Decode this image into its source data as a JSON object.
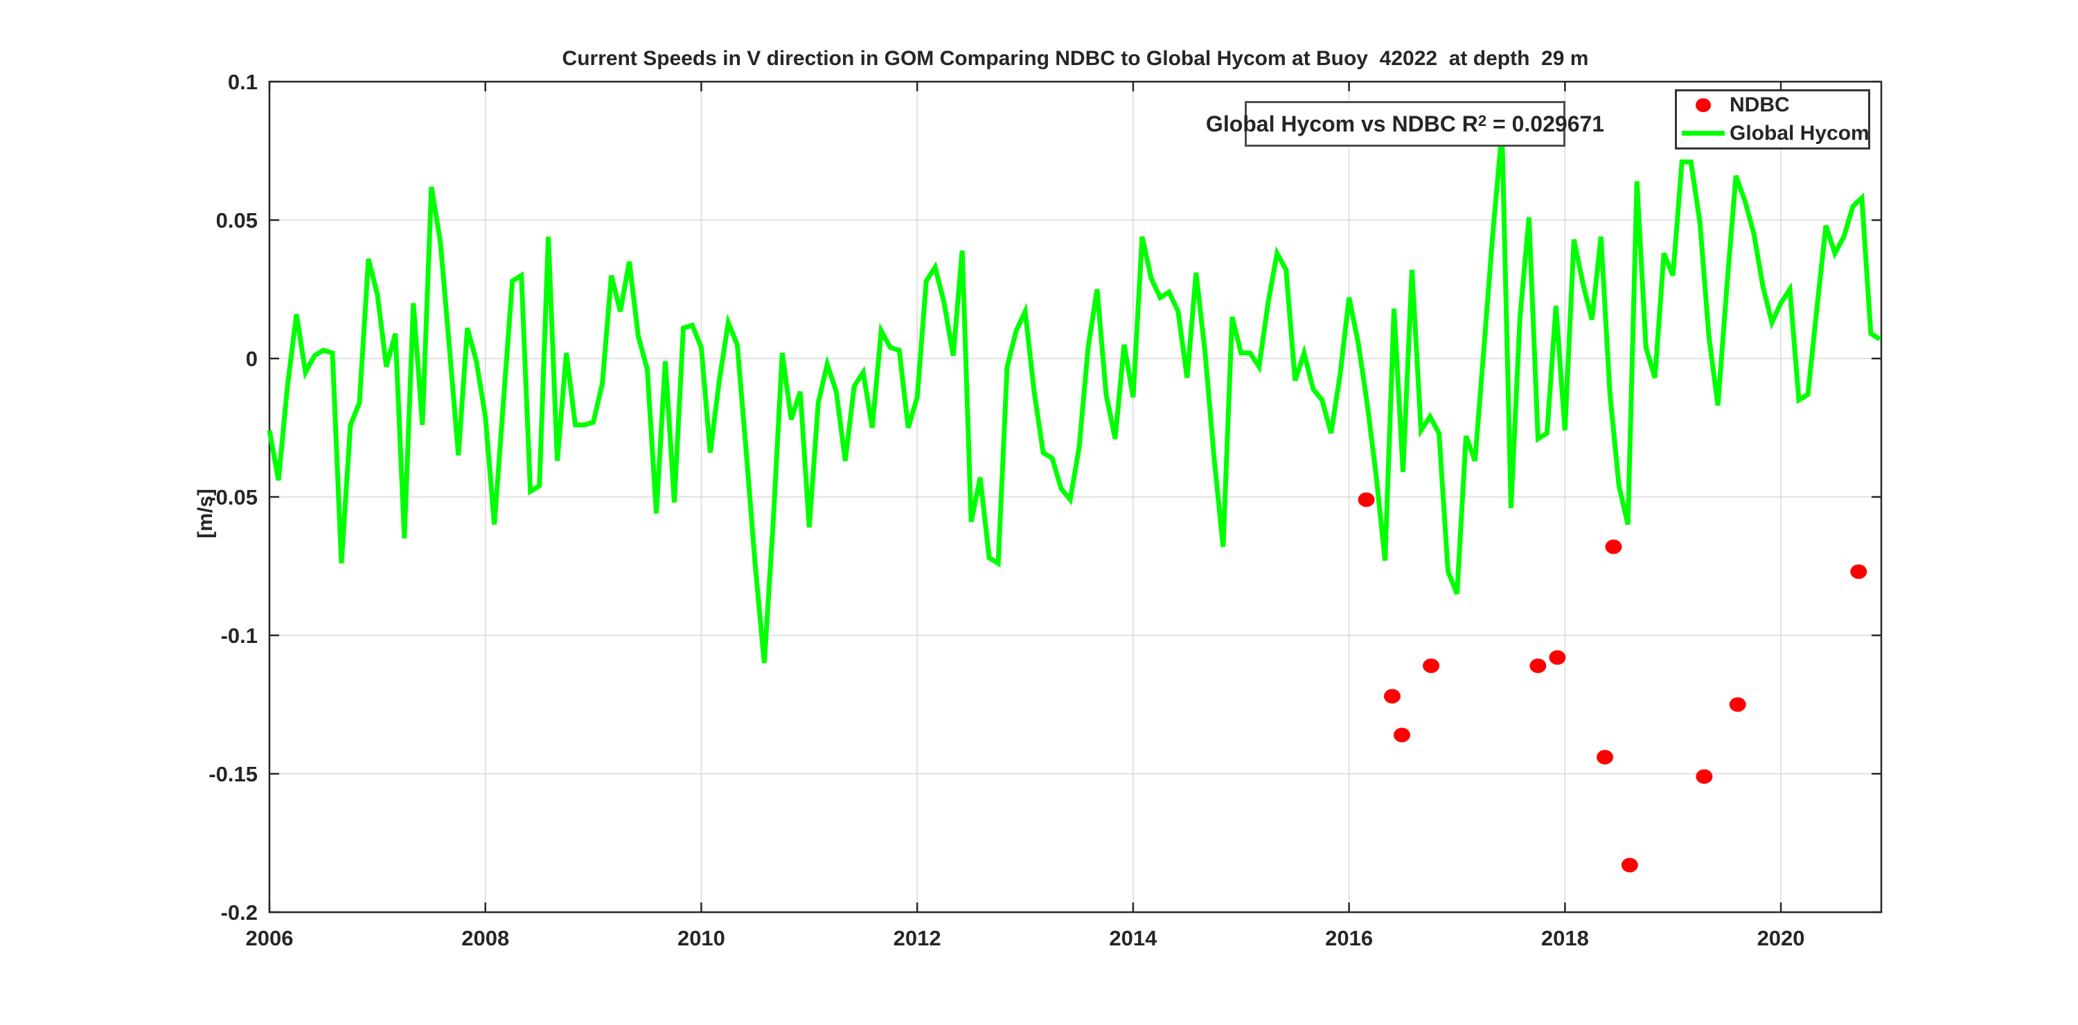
{
  "title": "Current Speeds in V direction in GOM Comparing NDBC to Global Hycom at Buoy  42022  at depth  29 m",
  "annotation": {
    "prefix": "Global Hycom vs NDBC R",
    "sup": "2",
    "suffix": " = 0.029671"
  },
  "legend": {
    "items": [
      {
        "label": "NDBC",
        "marker": "red-dot-icon",
        "color": "#ff0000"
      },
      {
        "label": "Global Hycom",
        "marker": "green-line-icon",
        "color": "#00ff00"
      }
    ]
  },
  "axes": {
    "ylabel": "[m/s]"
  },
  "chart_data": {
    "type": "line",
    "title": "Current Speeds in V direction in GOM Comparing NDBC to Global Hycom at Buoy  42022  at depth  29 m",
    "xlabel": "",
    "ylabel": "[m/s]",
    "xlim": [
      2006,
      2020.93
    ],
    "ylim": [
      -0.2,
      0.1
    ],
    "grid": true,
    "legend_position": "top-right",
    "annotation": "Global Hycom vs NDBC R^2 = 0.029671",
    "x_ticks": [
      {
        "value": 2006,
        "label": "2006"
      },
      {
        "value": 2008,
        "label": "2008"
      },
      {
        "value": 2010,
        "label": "2010"
      },
      {
        "value": 2012,
        "label": "2012"
      },
      {
        "value": 2014,
        "label": "2014"
      },
      {
        "value": 2016,
        "label": "2016"
      },
      {
        "value": 2018,
        "label": "2018"
      },
      {
        "value": 2020,
        "label": "2020"
      }
    ],
    "y_ticks": [
      {
        "value": 0.1,
        "label": "0.1"
      },
      {
        "value": 0.05,
        "label": "0.05"
      },
      {
        "value": 0,
        "label": "0"
      },
      {
        "value": -0.05,
        "label": "-0.05"
      },
      {
        "value": -0.1,
        "label": "-0.1"
      },
      {
        "value": -0.15,
        "label": "-0.15"
      },
      {
        "value": -0.2,
        "label": "-0.2"
      }
    ],
    "series": [
      {
        "name": "NDBC",
        "type": "scatter",
        "color": "#ff0000",
        "points": [
          [
            2016.16,
            -0.051
          ],
          [
            2016.4,
            -0.122
          ],
          [
            2016.49,
            -0.136
          ],
          [
            2016.76,
            -0.111
          ],
          [
            2017.75,
            -0.111
          ],
          [
            2017.93,
            -0.108
          ],
          [
            2018.37,
            -0.144
          ],
          [
            2018.45,
            -0.068
          ],
          [
            2018.6,
            -0.183
          ],
          [
            2019.29,
            -0.151
          ],
          [
            2019.6,
            -0.125
          ],
          [
            2020.72,
            -0.077
          ]
        ]
      },
      {
        "name": "Global Hycom",
        "type": "line",
        "color": "#00ff00",
        "x_start": 2006.0,
        "x_step_months": 1,
        "values": [
          -0.026,
          -0.044,
          -0.01,
          0.016,
          -0.005,
          0.001,
          0.003,
          0.002,
          -0.074,
          -0.024,
          -0.016,
          0.036,
          0.023,
          -0.003,
          0.009,
          -0.065,
          0.02,
          -0.024,
          0.062,
          0.042,
          0.004,
          -0.035,
          0.011,
          -0.001,
          -0.021,
          -0.06,
          -0.016,
          0.028,
          0.03,
          -0.048,
          -0.046,
          0.044,
          -0.037,
          0.002,
          -0.024,
          -0.024,
          -0.023,
          -0.009,
          0.03,
          0.017,
          0.035,
          0.008,
          -0.004,
          -0.056,
          -0.001,
          -0.052,
          0.011,
          0.012,
          0.004,
          -0.034,
          -0.008,
          0.013,
          0.005,
          -0.034,
          -0.075,
          -0.11,
          -0.059,
          0.002,
          -0.022,
          -0.012,
          -0.061,
          -0.016,
          -0.002,
          -0.012,
          -0.037,
          -0.01,
          -0.005,
          -0.025,
          0.01,
          0.004,
          0.003,
          -0.025,
          -0.014,
          0.028,
          0.033,
          0.02,
          0.001,
          0.039,
          -0.059,
          -0.043,
          -0.072,
          -0.074,
          -0.003,
          0.01,
          0.017,
          -0.012,
          -0.034,
          -0.036,
          -0.047,
          -0.051,
          -0.032,
          0.004,
          0.025,
          -0.013,
          -0.029,
          0.005,
          -0.014,
          0.044,
          0.029,
          0.022,
          0.024,
          0.017,
          -0.007,
          0.031,
          0.002,
          -0.036,
          -0.068,
          0.015,
          0.002,
          0.002,
          -0.003,
          0.02,
          0.038,
          0.032,
          -0.008,
          0.002,
          -0.011,
          -0.015,
          -0.027,
          -0.006,
          0.022,
          0.006,
          -0.016,
          -0.042,
          -0.073,
          0.018,
          -0.041,
          0.032,
          -0.026,
          -0.021,
          -0.027,
          -0.077,
          -0.085,
          -0.028,
          -0.037,
          0.004,
          0.046,
          0.082,
          -0.054,
          0.015,
          0.051,
          -0.029,
          -0.027,
          0.019,
          -0.026,
          0.043,
          0.027,
          0.014,
          0.044,
          -0.013,
          -0.046,
          -0.06,
          0.064,
          0.004,
          -0.007,
          0.038,
          0.03,
          0.071,
          0.071,
          0.049,
          0.008,
          -0.017,
          0.026,
          0.066,
          0.057,
          0.045,
          0.026,
          0.013,
          0.02,
          0.025,
          -0.015,
          -0.013,
          0.018,
          0.048,
          0.038,
          0.044,
          0.055,
          0.058,
          0.009,
          0.007
        ]
      }
    ]
  },
  "style": {
    "text_color": "#262626",
    "grid_color": "#dadada",
    "box_color": "#262626",
    "background": "#ffffff"
  }
}
